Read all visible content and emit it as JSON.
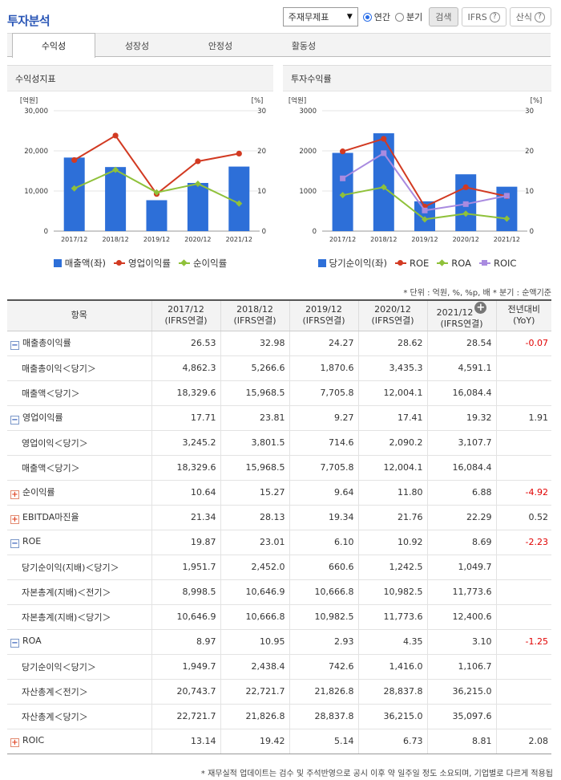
{
  "page": {
    "title": "투자분석"
  },
  "controls": {
    "report_select": "주재무제표",
    "period_annual": "연간",
    "period_quarter": "분기",
    "search_label": "검색",
    "ifrs_label": "IFRS",
    "formula_label": "산식"
  },
  "tabs": [
    "수익성",
    "성장성",
    "안정성",
    "활동성"
  ],
  "left_chart_title": "수익성지표",
  "right_chart_title": "투자수익률",
  "unit_note": "* 단위 : 억원, %, %p, 배   * 분기 : 순액기준",
  "chart_data": [
    {
      "type": "bar+line",
      "title": "수익성지표",
      "categories": [
        "2017/12",
        "2018/12",
        "2019/12",
        "2020/12",
        "2021/12"
      ],
      "left_unit": "[억원]",
      "right_unit": "[%]",
      "left_ticks": [
        "30,000",
        "20,000",
        "10,000",
        "0"
      ],
      "right_ticks": [
        "30",
        "20",
        "10",
        "0"
      ],
      "ylim_left": [
        0,
        30000
      ],
      "ylim_right": [
        0,
        30
      ],
      "bar_series": {
        "name": "매출액(좌)",
        "color": "#2d6fd8",
        "values": [
          18329.6,
          15968.5,
          7705.8,
          12004.1,
          16084.4
        ]
      },
      "line_series": [
        {
          "name": "영업이익률",
          "color": "#d23a22",
          "marker": "circle",
          "values": [
            17.71,
            23.81,
            9.27,
            17.41,
            19.32
          ]
        },
        {
          "name": "순이익률",
          "color": "#8fc13a",
          "marker": "diamond",
          "values": [
            10.64,
            15.27,
            9.64,
            11.8,
            6.88
          ]
        }
      ]
    },
    {
      "type": "bar+line",
      "title": "투자수익률",
      "categories": [
        "2017/12",
        "2018/12",
        "2019/12",
        "2020/12",
        "2021/12"
      ],
      "left_unit": "[억원]",
      "right_unit": "[%]",
      "left_ticks": [
        "3000",
        "2000",
        "1000",
        "0"
      ],
      "right_ticks": [
        "30",
        "20",
        "10",
        "0"
      ],
      "ylim_left": [
        0,
        3000
      ],
      "ylim_right": [
        0,
        30
      ],
      "bar_series": {
        "name": "당기순이익(좌)",
        "color": "#2d6fd8",
        "values": [
          1949.7,
          2438.4,
          742.6,
          1416.0,
          1106.7
        ]
      },
      "line_series": [
        {
          "name": "ROE",
          "color": "#d23a22",
          "marker": "circle",
          "values": [
            19.87,
            23.01,
            6.1,
            10.92,
            8.69
          ]
        },
        {
          "name": "ROA",
          "color": "#8fc13a",
          "marker": "diamond",
          "values": [
            8.97,
            10.95,
            2.93,
            4.35,
            3.1
          ]
        },
        {
          "name": "ROIC",
          "color": "#a98be0",
          "marker": "square",
          "values": [
            13.14,
            19.42,
            5.14,
            6.73,
            8.81
          ]
        }
      ]
    }
  ],
  "table": {
    "headers": [
      {
        "line1": "항목",
        "line2": ""
      },
      {
        "line1": "2017/12",
        "line2": "(IFRS연결)"
      },
      {
        "line1": "2018/12",
        "line2": "(IFRS연결)"
      },
      {
        "line1": "2019/12",
        "line2": "(IFRS연결)"
      },
      {
        "line1": "2020/12",
        "line2": "(IFRS연결)"
      },
      {
        "line1": "2021/12",
        "line2": "(IFRS연결)"
      },
      {
        "line1": "전년대비",
        "line2": "(YoY)"
      }
    ],
    "rows": [
      {
        "label": "매출총이익률",
        "toggle": "minus",
        "sub": false,
        "values": [
          "26.53",
          "32.98",
          "24.27",
          "28.62",
          "28.54"
        ],
        "yoy": "-0.07",
        "neg": true
      },
      {
        "label": "매출총이익＜당기＞",
        "toggle": "",
        "sub": true,
        "values": [
          "4,862.3",
          "5,266.6",
          "1,870.6",
          "3,435.3",
          "4,591.1"
        ],
        "yoy": "",
        "neg": false
      },
      {
        "label": "매출액＜당기＞",
        "toggle": "",
        "sub": true,
        "values": [
          "18,329.6",
          "15,968.5",
          "7,705.8",
          "12,004.1",
          "16,084.4"
        ],
        "yoy": "",
        "neg": false
      },
      {
        "label": "영업이익률",
        "toggle": "minus",
        "sub": false,
        "values": [
          "17.71",
          "23.81",
          "9.27",
          "17.41",
          "19.32"
        ],
        "yoy": "1.91",
        "neg": false
      },
      {
        "label": "영업이익＜당기＞",
        "toggle": "",
        "sub": true,
        "values": [
          "3,245.2",
          "3,801.5",
          "714.6",
          "2,090.2",
          "3,107.7"
        ],
        "yoy": "",
        "neg": false
      },
      {
        "label": "매출액＜당기＞",
        "toggle": "",
        "sub": true,
        "values": [
          "18,329.6",
          "15,968.5",
          "7,705.8",
          "12,004.1",
          "16,084.4"
        ],
        "yoy": "",
        "neg": false
      },
      {
        "label": "순이익률",
        "toggle": "plus",
        "sub": false,
        "values": [
          "10.64",
          "15.27",
          "9.64",
          "11.80",
          "6.88"
        ],
        "yoy": "-4.92",
        "neg": true
      },
      {
        "label": "EBITDA마진율",
        "toggle": "plus",
        "sub": false,
        "values": [
          "21.34",
          "28.13",
          "19.34",
          "21.76",
          "22.29"
        ],
        "yoy": "0.52",
        "neg": false
      },
      {
        "label": "ROE",
        "toggle": "minus",
        "sub": false,
        "values": [
          "19.87",
          "23.01",
          "6.10",
          "10.92",
          "8.69"
        ],
        "yoy": "-2.23",
        "neg": true
      },
      {
        "label": "당기순이익(지배)＜당기＞",
        "toggle": "",
        "sub": true,
        "values": [
          "1,951.7",
          "2,452.0",
          "660.6",
          "1,242.5",
          "1,049.7"
        ],
        "yoy": "",
        "neg": false
      },
      {
        "label": "자본총계(지배)＜전기＞",
        "toggle": "",
        "sub": true,
        "values": [
          "8,998.5",
          "10,646.9",
          "10,666.8",
          "10,982.5",
          "11,773.6"
        ],
        "yoy": "",
        "neg": false
      },
      {
        "label": "자본총계(지배)＜당기＞",
        "toggle": "",
        "sub": true,
        "values": [
          "10,646.9",
          "10,666.8",
          "10,982.5",
          "11,773.6",
          "12,400.6"
        ],
        "yoy": "",
        "neg": false
      },
      {
        "label": "ROA",
        "toggle": "minus",
        "sub": false,
        "values": [
          "8.97",
          "10.95",
          "2.93",
          "4.35",
          "3.10"
        ],
        "yoy": "-1.25",
        "neg": true
      },
      {
        "label": "당기순이익＜당기＞",
        "toggle": "",
        "sub": true,
        "values": [
          "1,949.7",
          "2,438.4",
          "742.6",
          "1,416.0",
          "1,106.7"
        ],
        "yoy": "",
        "neg": false
      },
      {
        "label": "자산총계＜전기＞",
        "toggle": "",
        "sub": true,
        "values": [
          "20,743.7",
          "22,721.7",
          "21,826.8",
          "28,837.8",
          "36,215.0"
        ],
        "yoy": "",
        "neg": false
      },
      {
        "label": "자산총계＜당기＞",
        "toggle": "",
        "sub": true,
        "values": [
          "22,721.7",
          "21,826.8",
          "28,837.8",
          "36,215.0",
          "35,097.6"
        ],
        "yoy": "",
        "neg": false
      },
      {
        "label": "ROIC",
        "toggle": "plus",
        "sub": false,
        "values": [
          "13.14",
          "19.42",
          "5.14",
          "6.73",
          "8.81"
        ],
        "yoy": "2.08",
        "neg": false
      }
    ]
  },
  "footnote": "* 재무실적 업데이트는 검수 및 주석반영으로 공시 이후 약 일주일 정도 소요되며, 기업별로 다르게 적용됩"
}
